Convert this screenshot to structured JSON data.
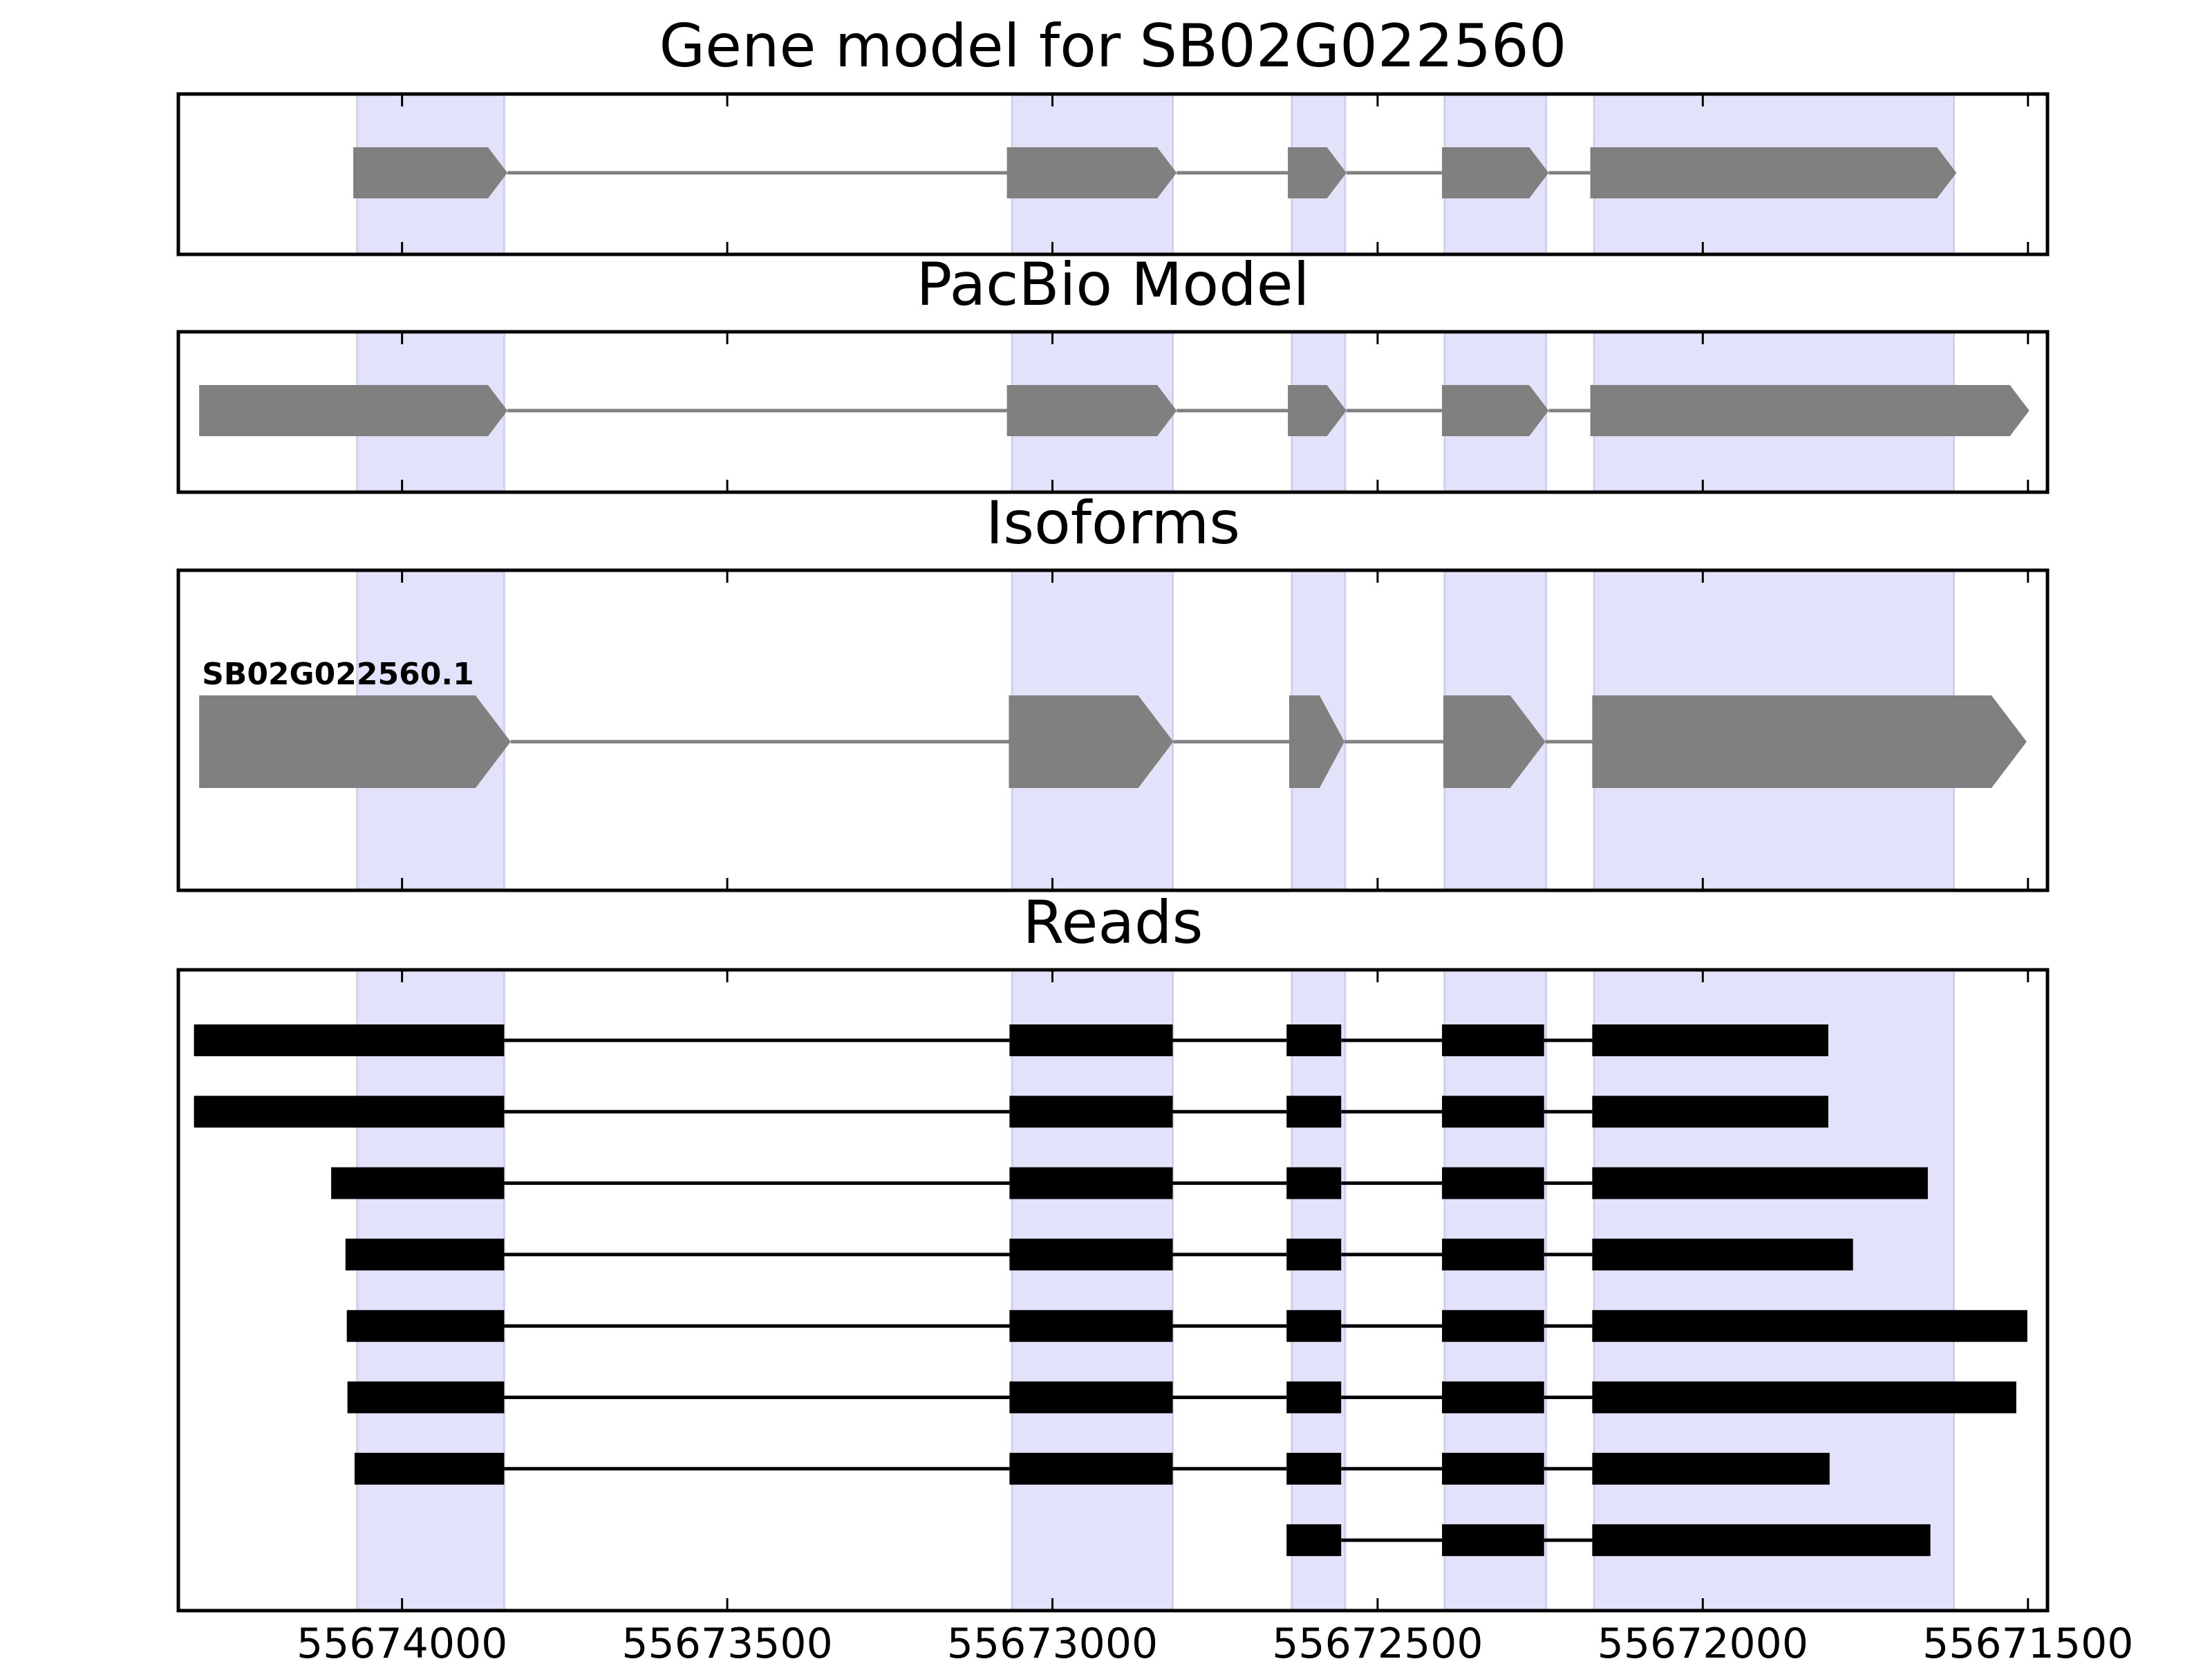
{
  "chart_data": {
    "type": "gene-model",
    "xlim": [
      55674344,
      55671470
    ],
    "x_ticks": [
      55674000,
      55673500,
      55673000,
      55672500,
      55672000,
      55671500
    ],
    "x_tick_labels": [
      "55674000",
      "55673500",
      "55673000",
      "55672500",
      "55672000",
      "55671500"
    ],
    "highlight_color": "#e2e2fb",
    "feature_color": "#808080",
    "read_color": "#000000",
    "highlight_regions": [
      [
        55674069,
        55673843
      ],
      [
        55673062,
        55672815
      ],
      [
        55672632,
        55672550
      ],
      [
        55672397,
        55672241
      ],
      [
        55672167,
        55671614
      ]
    ],
    "panels": [
      {
        "title": "Gene model for SB02G022560",
        "kind": "model",
        "features": [
          {
            "label": "",
            "exons": [
              [
                55674075,
                55673838
              ],
              [
                55673070,
                55672809
              ],
              [
                55672638,
                55672548
              ],
              [
                55672401,
                55672237
              ],
              [
                55672173,
                55671610
              ]
            ]
          }
        ]
      },
      {
        "title": "PacBio Model",
        "kind": "model",
        "features": [
          {
            "label": "",
            "exons": [
              [
                55674312,
                55673838
              ],
              [
                55673070,
                55672809
              ],
              [
                55672638,
                55672548
              ],
              [
                55672401,
                55672237
              ],
              [
                55672173,
                55671498
              ]
            ]
          }
        ]
      },
      {
        "title": "Isoforms",
        "kind": "isoform",
        "features": [
          {
            "label": "SB02G022560.1",
            "exons": [
              [
                55674312,
                55673833
              ],
              [
                55673067,
                55672814
              ],
              [
                55672636,
                55672551
              ],
              [
                55672399,
                55672242
              ],
              [
                55672170,
                55671502
              ]
            ]
          }
        ]
      },
      {
        "title": "Reads",
        "kind": "reads",
        "features": [
          {
            "exons": [
              [
                55674320,
                55673843
              ],
              [
                55673066,
                55672815
              ],
              [
                55672640,
                55672556
              ],
              [
                55672401,
                55672244
              ],
              [
                55672170,
                55671807
              ]
            ]
          },
          {
            "exons": [
              [
                55674320,
                55673843
              ],
              [
                55673066,
                55672815
              ],
              [
                55672640,
                55672556
              ],
              [
                55672401,
                55672244
              ],
              [
                55672170,
                55671807
              ]
            ]
          },
          {
            "exons": [
              [
                55674109,
                55673843
              ],
              [
                55673066,
                55672815
              ],
              [
                55672640,
                55672556
              ],
              [
                55672401,
                55672244
              ],
              [
                55672170,
                55671654
              ]
            ]
          },
          {
            "exons": [
              [
                55674087,
                55673843
              ],
              [
                55673066,
                55672815
              ],
              [
                55672640,
                55672556
              ],
              [
                55672401,
                55672244
              ],
              [
                55672170,
                55671769
              ]
            ]
          },
          {
            "exons": [
              [
                55674085,
                55673843
              ],
              [
                55673066,
                55672815
              ],
              [
                55672640,
                55672556
              ],
              [
                55672401,
                55672244
              ],
              [
                55672170,
                55671501
              ]
            ]
          },
          {
            "exons": [
              [
                55674084,
                55673843
              ],
              [
                55673066,
                55672815
              ],
              [
                55672640,
                55672556
              ],
              [
                55672401,
                55672244
              ],
              [
                55672170,
                55671518
              ]
            ]
          },
          {
            "exons": [
              [
                55674073,
                55673843
              ],
              [
                55673066,
                55672815
              ],
              [
                55672640,
                55672556
              ],
              [
                55672401,
                55672244
              ],
              [
                55672170,
                55671805
              ]
            ]
          },
          {
            "exons": [
              [
                55672640,
                55672556
              ],
              [
                55672401,
                55672244
              ],
              [
                55672170,
                55671650
              ]
            ]
          }
        ]
      }
    ]
  }
}
